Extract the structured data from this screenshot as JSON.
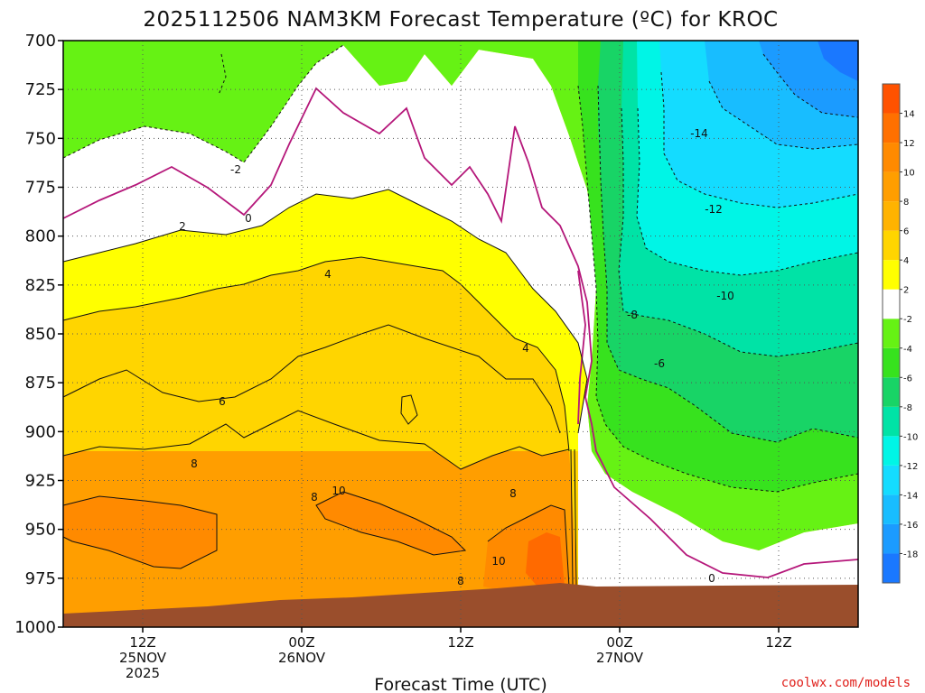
{
  "chart_data": {
    "type": "contour",
    "title": "2025112506 NAM3KM Forecast Temperature (ºC) for KROC",
    "xlabel": "Forecast Time (UTC)",
    "ylabel": "",
    "y_scale": "pressure (hPa), inverted",
    "ylim": [
      1000,
      700
    ],
    "yticks": [
      700,
      725,
      750,
      775,
      800,
      825,
      850,
      875,
      900,
      925,
      950,
      975,
      1000
    ],
    "x_range_hours_from_init": [
      0,
      60
    ],
    "xticks": [
      {
        "hour": 6,
        "lines": [
          "12Z",
          "25NOV",
          "2025"
        ]
      },
      {
        "hour": 18,
        "lines": [
          "00Z",
          "26NOV"
        ]
      },
      {
        "hour": 30,
        "lines": [
          "12Z"
        ]
      },
      {
        "hour": 42,
        "lines": [
          "00Z",
          "27NOV"
        ]
      },
      {
        "hour": 54,
        "lines": [
          "12Z"
        ]
      }
    ],
    "grid": true,
    "colorbar": {
      "position": "right",
      "levels": [
        -20,
        -18,
        -16,
        -14,
        -12,
        -10,
        -8,
        -6,
        -4,
        -2,
        2,
        4,
        6,
        8,
        10,
        12,
        14,
        16
      ],
      "tick_labels": [
        "-18",
        "-16",
        "-14",
        "-12",
        "-10",
        "-8",
        "-6",
        "-4",
        "-2",
        "2",
        "4",
        "6",
        "8",
        "10",
        "12",
        "14"
      ],
      "colors": [
        "#1a78ff",
        "#1b9bff",
        "#18bdff",
        "#14dcff",
        "#00f5e6",
        "#00e3a6",
        "#18d466",
        "#37e21e",
        "#66f214",
        "#ffffff",
        "#ffff00",
        "#ffd500",
        "#ffb300",
        "#ff9e00",
        "#ff8a00",
        "#ff7000",
        "#ff5200"
      ]
    },
    "contour_labels": [
      "-2",
      "0",
      "2",
      "4",
      "4",
      "6",
      "8",
      "8",
      "8",
      "8",
      "10",
      "10",
      "-14",
      "-12",
      "-10",
      "-8",
      "-6",
      "0"
    ],
    "terrain_color": "#9a4e2c",
    "credit": "coolwx.com/models"
  }
}
